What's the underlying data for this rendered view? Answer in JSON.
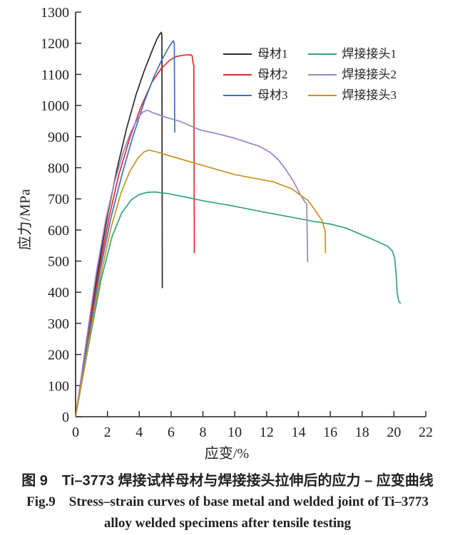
{
  "figure": {
    "caption_line1": "图 9　Ti–3773 焊接试样母材与焊接接头拉伸后的应力 – 应变曲线",
    "caption_line2": "Fig.9　Stress–strain curves of base metal and welded joint of Ti–3773",
    "caption_line3": "alloy welded specimens after tensile testing"
  },
  "chart_data": {
    "type": "line",
    "title": "",
    "xlabel": "应变/%",
    "ylabel": "应力/MPa",
    "xlim": [
      0,
      22
    ],
    "ylim": [
      0,
      1300
    ],
    "x_ticks": [
      0,
      2,
      4,
      6,
      8,
      10,
      12,
      14,
      16,
      18,
      20,
      22
    ],
    "y_ticks": [
      0,
      100,
      200,
      300,
      400,
      500,
      600,
      700,
      800,
      900,
      1000,
      1100,
      1200,
      1300
    ],
    "grid": false,
    "legend_position": "upper-right-inside",
    "axis_color": "#231f20",
    "series": [
      {
        "key": "base-metal-1",
        "name": "母材1",
        "color": "#2b2a2a",
        "points": [
          [
            0,
            0
          ],
          [
            0.7,
            240
          ],
          [
            1.4,
            468
          ],
          [
            2.0,
            645
          ],
          [
            2.6,
            795
          ],
          [
            3.2,
            925
          ],
          [
            3.8,
            1035
          ],
          [
            4.3,
            1110
          ],
          [
            4.8,
            1175
          ],
          [
            5.1,
            1212
          ],
          [
            5.3,
            1230
          ],
          [
            5.38,
            1235
          ],
          [
            5.42,
            1226
          ],
          [
            5.45,
            415
          ]
        ]
      },
      {
        "key": "base-metal-2",
        "name": "母材2",
        "color": "#e4292d",
        "points": [
          [
            0,
            0
          ],
          [
            0.72,
            238
          ],
          [
            1.45,
            465
          ],
          [
            2.1,
            640
          ],
          [
            2.7,
            775
          ],
          [
            3.4,
            895
          ],
          [
            4.1,
            995
          ],
          [
            4.8,
            1075
          ],
          [
            5.4,
            1120
          ],
          [
            5.9,
            1145
          ],
          [
            6.3,
            1157
          ],
          [
            6.8,
            1162
          ],
          [
            7.2,
            1163
          ],
          [
            7.32,
            1160
          ],
          [
            7.38,
            1138
          ],
          [
            7.43,
            1128
          ],
          [
            7.46,
            527
          ]
        ]
      },
      {
        "key": "base-metal-3",
        "name": "母材3",
        "color": "#3b70c0",
        "points": [
          [
            0,
            0
          ],
          [
            0.75,
            235
          ],
          [
            1.5,
            460
          ],
          [
            2.2,
            635
          ],
          [
            2.9,
            775
          ],
          [
            3.6,
            900
          ],
          [
            4.3,
            1010
          ],
          [
            4.9,
            1090
          ],
          [
            5.4,
            1145
          ],
          [
            5.8,
            1182
          ],
          [
            6.05,
            1202
          ],
          [
            6.15,
            1208
          ],
          [
            6.2,
            1198
          ],
          [
            6.23,
            915
          ]
        ]
      },
      {
        "key": "welded-joint-1",
        "name": "焊接接头1",
        "color": "#33a578",
        "points": [
          [
            0,
            0
          ],
          [
            0.8,
            225
          ],
          [
            1.6,
            440
          ],
          [
            2.3,
            580
          ],
          [
            2.9,
            655
          ],
          [
            3.5,
            697
          ],
          [
            4.0,
            714
          ],
          [
            4.5,
            721
          ],
          [
            5.0,
            722
          ],
          [
            5.8,
            717
          ],
          [
            7.0,
            705
          ],
          [
            8.0,
            694
          ],
          [
            10,
            676
          ],
          [
            12,
            656
          ],
          [
            14,
            637
          ],
          [
            14.8,
            629
          ],
          [
            16,
            619
          ],
          [
            17,
            606
          ],
          [
            18.1,
            582
          ],
          [
            19,
            562
          ],
          [
            19.6,
            548
          ],
          [
            19.9,
            533
          ],
          [
            20.05,
            510
          ],
          [
            20.15,
            450
          ],
          [
            20.2,
            400
          ],
          [
            20.3,
            372
          ],
          [
            20.4,
            365
          ]
        ]
      },
      {
        "key": "welded-joint-2",
        "name": "焊接接头2",
        "color": "#9c80c4",
        "points": [
          [
            0,
            0
          ],
          [
            0.65,
            235
          ],
          [
            1.3,
            462
          ],
          [
            1.9,
            635
          ],
          [
            2.45,
            755
          ],
          [
            3.0,
            852
          ],
          [
            3.5,
            918
          ],
          [
            3.9,
            958
          ],
          [
            4.2,
            978
          ],
          [
            4.5,
            985
          ],
          [
            4.9,
            976
          ],
          [
            5.6,
            963
          ],
          [
            6.5,
            950
          ],
          [
            7.8,
            922
          ],
          [
            9.0,
            908
          ],
          [
            10.0,
            895
          ],
          [
            11.0,
            878
          ],
          [
            11.5,
            870
          ],
          [
            12.2,
            850
          ],
          [
            12.7,
            828
          ],
          [
            13.2,
            795
          ],
          [
            13.7,
            755
          ],
          [
            14.1,
            715
          ],
          [
            14.4,
            690
          ],
          [
            14.52,
            683
          ],
          [
            14.58,
            499
          ]
        ]
      },
      {
        "key": "welded-joint-3",
        "name": "焊接接头3",
        "color": "#c8931d",
        "points": [
          [
            0,
            0
          ],
          [
            0.78,
            228
          ],
          [
            1.55,
            448
          ],
          [
            2.25,
            612
          ],
          [
            2.85,
            718
          ],
          [
            3.4,
            788
          ],
          [
            3.9,
            830
          ],
          [
            4.3,
            851
          ],
          [
            4.6,
            857
          ],
          [
            5.0,
            852
          ],
          [
            5.8,
            840
          ],
          [
            6.8,
            825
          ],
          [
            7.8,
            810
          ],
          [
            10,
            778
          ],
          [
            12.4,
            755
          ],
          [
            13.6,
            732
          ],
          [
            14.2,
            709
          ],
          [
            14.6,
            695
          ],
          [
            15.1,
            660
          ],
          [
            15.5,
            629
          ],
          [
            15.62,
            606
          ],
          [
            15.68,
            598
          ],
          [
            15.7,
            527
          ]
        ]
      }
    ]
  }
}
